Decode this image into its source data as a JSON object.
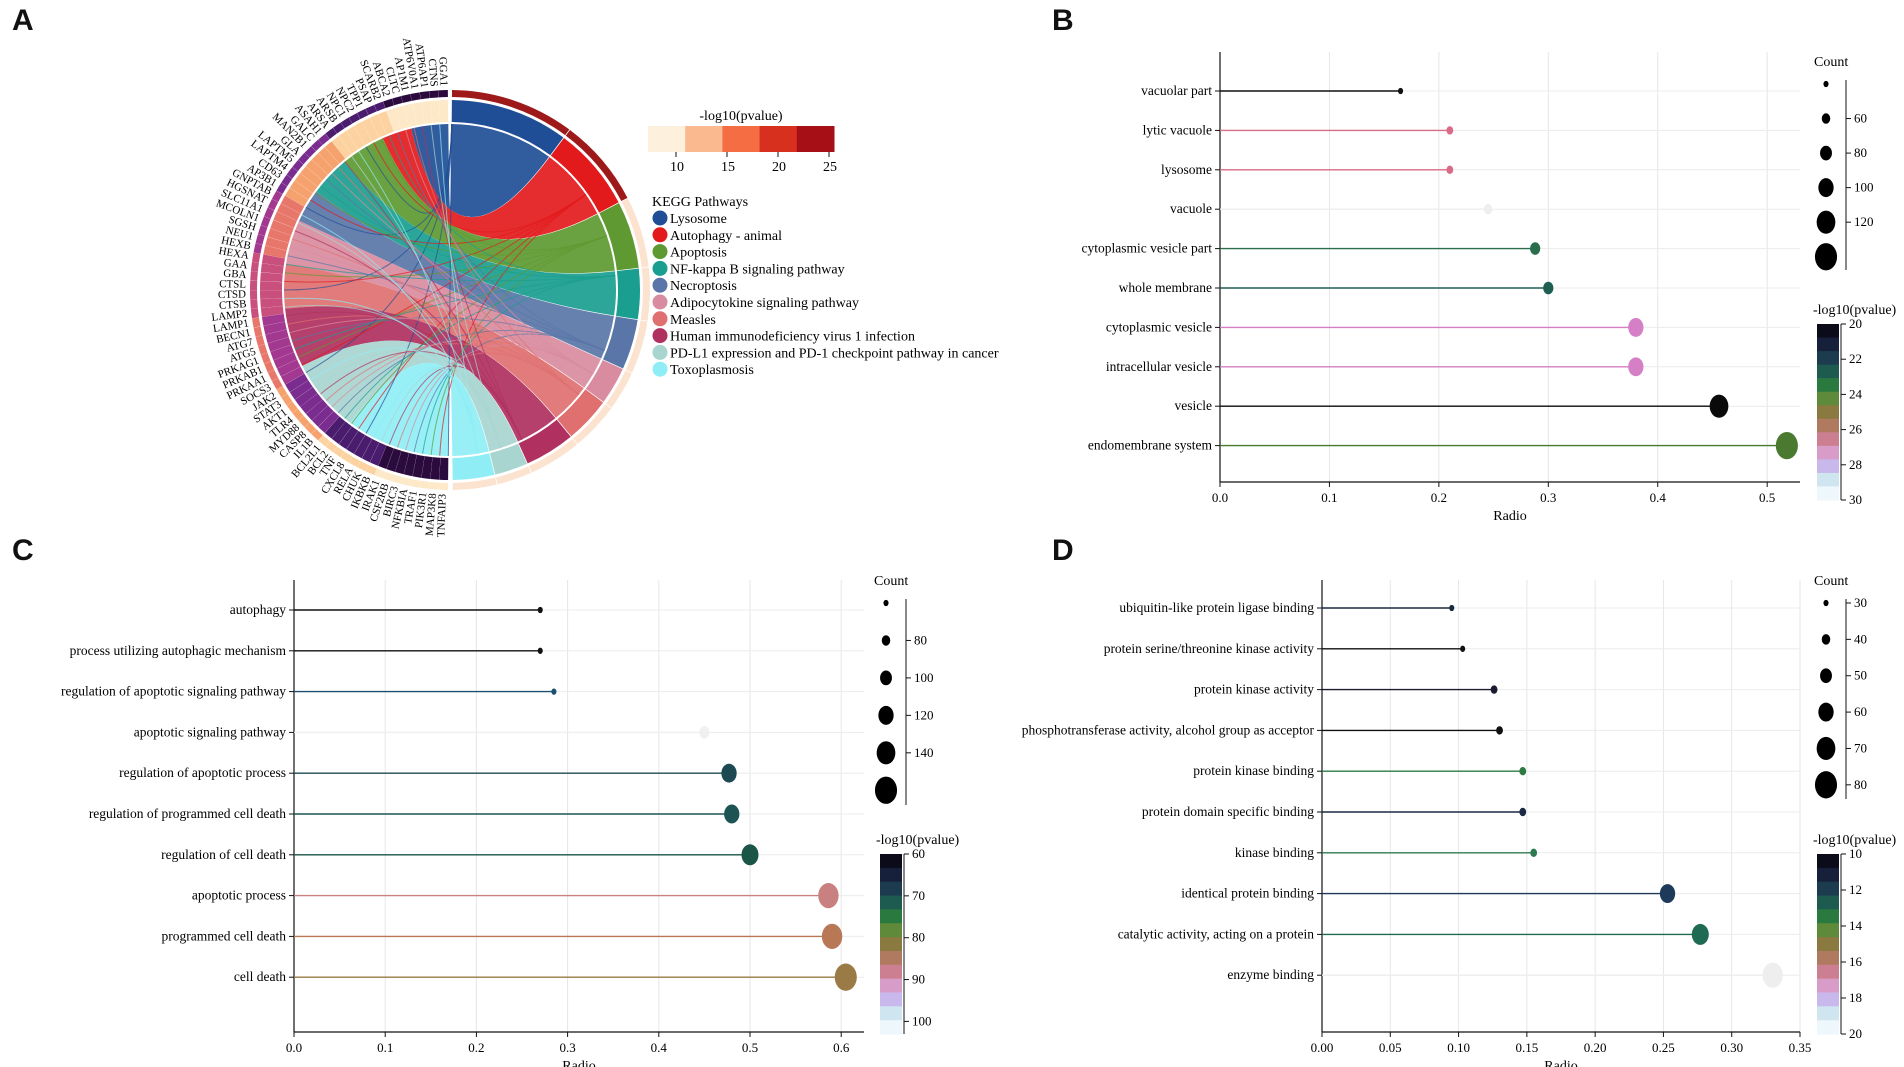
{
  "panels": {
    "a": "A",
    "b": "B",
    "c": "C",
    "d": "D"
  },
  "chart_data": [
    {
      "panel": "A",
      "type": "chord",
      "colorbar": {
        "title": "-log10(pvalue)",
        "ticks": [
          10,
          15,
          20,
          25
        ],
        "colors": [
          "#fdf0dc",
          "#fbb98f",
          "#f46d43",
          "#d7301f",
          "#a50f15"
        ]
      },
      "legend_title": "KEGG Pathways",
      "pathways": [
        {
          "name": "Lysosome",
          "color": "#1f4e96",
          "genes": 28
        },
        {
          "name": "Autophagy - animal",
          "color": "#e31a1c",
          "genes": 20
        },
        {
          "name": "Apoptosis",
          "color": "#5e9a31",
          "genes": 16
        },
        {
          "name": "NF-kappa B signaling pathway",
          "color": "#1a9e8f",
          "genes": 12
        },
        {
          "name": "Necroptosis",
          "color": "#5a76a8",
          "genes": 12
        },
        {
          "name": "Adipocytokine signaling pathway",
          "color": "#d98ca0",
          "genes": 9
        },
        {
          "name": "Measles",
          "color": "#e07070",
          "genes": 11
        },
        {
          "name": "Human immunodeficiency virus 1 infection",
          "color": "#b03060",
          "genes": 12
        },
        {
          "name": "PD-L1 expression and PD-1 checkpoint pathway in cancer",
          "color": "#a8d5d0",
          "genes": 8
        },
        {
          "name": "Toxoplasmosis",
          "color": "#8feef5",
          "genes": 10
        }
      ],
      "genes": [
        "TNFAIP3",
        "MAP3K8",
        "PIK3R1",
        "TRAF1",
        "NFKBIA",
        "BIRC3",
        "CSF2RB",
        "IRAK1",
        "IKBKB",
        "CHUK",
        "RELA",
        "CXCL8",
        "TNF",
        "BCL2",
        "BCL2L1",
        "IL1B",
        "CASP8",
        "MYD88",
        "TLR4",
        "AKT1",
        "STAT3",
        "JAK2",
        "SOCS3",
        "PRKAA1",
        "PRKAB1",
        "PRKAG1",
        "ATG5",
        "ATG7",
        "BECN1",
        "LAMP1",
        "LAMP2",
        "CTSB",
        "CTSD",
        "CTSL",
        "GBA",
        "GAA",
        "HEXA",
        "HEXB",
        "NEU1",
        "SGSH",
        "MCOLN1",
        "SLC11A1",
        "HGSNAT",
        "GNPTAB",
        "AP3B1",
        "CD63",
        "LAPTM4",
        "LAPTM5",
        "GLA",
        "MAN2B1",
        "GALC",
        "ASAH1",
        "ARSA",
        "ARSB",
        "NPC1",
        "NPC2",
        "TPP1",
        "PSAP",
        "SCARB2",
        "ABCA2",
        "CLTC",
        "AP1M1",
        "ATP6V0A1",
        "ATP6AP1",
        "CTNS",
        "GGA1"
      ]
    },
    {
      "panel": "B",
      "type": "lollipop",
      "xlabel": "Radio",
      "xlim": [
        0,
        0.53
      ],
      "xticks": [
        0.0,
        0.1,
        0.2,
        0.3,
        0.4,
        0.5
      ],
      "size_legend": {
        "title": "Count",
        "breaks": [
          "",
          "60",
          "80",
          "100",
          "120",
          ""
        ]
      },
      "color_legend": {
        "title": "-log10(pvalue)",
        "ticks": [
          "20",
          "22",
          "24",
          "26",
          "28",
          "30"
        ]
      },
      "items": [
        {
          "label": "vacuolar part",
          "value": 0.165,
          "color": "#111111",
          "size": 3
        },
        {
          "label": "lytic vacuole",
          "value": 0.21,
          "color": "#d96b86",
          "size": 4
        },
        {
          "label": "lysosome",
          "value": 0.21,
          "color": "#d96b86",
          "size": 4
        },
        {
          "label": "vacuole",
          "value": 0.245,
          "color": "#eeeeee",
          "size": 5
        },
        {
          "label": "cytoplasmic vesicle part",
          "value": 0.288,
          "color": "#2a6e4e",
          "size": 6
        },
        {
          "label": "whole membrane",
          "value": 0.3,
          "color": "#1f5e52",
          "size": 6
        },
        {
          "label": "cytoplasmic vesicle",
          "value": 0.38,
          "color": "#d47fc6",
          "size": 9
        },
        {
          "label": "intracellular vesicle",
          "value": 0.38,
          "color": "#d47fc6",
          "size": 9
        },
        {
          "label": "vesicle",
          "value": 0.456,
          "color": "#0a0a0a",
          "size": 11
        },
        {
          "label": "endomembrane system",
          "value": 0.518,
          "color": "#4a7a30",
          "size": 13
        }
      ]
    },
    {
      "panel": "C",
      "type": "lollipop",
      "xlabel": "Radio",
      "xlim": [
        0,
        0.625
      ],
      "xticks": [
        0.0,
        0.1,
        0.2,
        0.3,
        0.4,
        0.5,
        0.6
      ],
      "size_legend": {
        "title": "Count",
        "breaks": [
          "",
          "80",
          "100",
          "120",
          "140",
          ""
        ]
      },
      "color_legend": {
        "title": "-log10(pvalue)",
        "ticks": [
          "60",
          "70",
          "80",
          "90",
          "100"
        ]
      },
      "items": [
        {
          "label": "autophagy",
          "value": 0.27,
          "color": "#111111",
          "size": 3
        },
        {
          "label": "process utilizing autophagic mechanism",
          "value": 0.27,
          "color": "#111111",
          "size": 3
        },
        {
          "label": "regulation of apoptotic signaling pathway",
          "value": 0.285,
          "color": "#1d4f6e",
          "size": 3
        },
        {
          "label": "apoptotic signaling pathway",
          "value": 0.45,
          "color": "#f0f0f0",
          "size": 6
        },
        {
          "label": "regulation of apoptotic process",
          "value": 0.477,
          "color": "#1d4a52",
          "size": 9
        },
        {
          "label": "regulation of programmed cell death",
          "value": 0.48,
          "color": "#1e5354",
          "size": 9
        },
        {
          "label": "regulation of cell death",
          "value": 0.5,
          "color": "#1a5547",
          "size": 10
        },
        {
          "label": "apoptotic process",
          "value": 0.586,
          "color": "#c98080",
          "size": 12
        },
        {
          "label": "programmed cell death",
          "value": 0.59,
          "color": "#b87755",
          "size": 12
        },
        {
          "label": "cell death",
          "value": 0.605,
          "color": "#9a7a45",
          "size": 13
        }
      ]
    },
    {
      "panel": "D",
      "type": "lollipop",
      "xlabel": "Radio",
      "xlim": [
        0,
        0.35
      ],
      "xticks": [
        0.0,
        0.05,
        0.1,
        0.15,
        0.2,
        0.25,
        0.3,
        0.35
      ],
      "size_legend": {
        "title": "Count",
        "breaks": [
          "30",
          "40",
          "50",
          "60",
          "70",
          "80"
        ]
      },
      "color_legend": {
        "title": "-log10(pvalue)",
        "ticks": [
          "10",
          "12",
          "14",
          "16",
          "18",
          "20"
        ]
      },
      "items": [
        {
          "label": "ubiquitin-like protein ligase binding",
          "value": 0.095,
          "color": "#1a2a40",
          "size": 3
        },
        {
          "label": "protein serine/threonine kinase activity",
          "value": 0.103,
          "color": "#111111",
          "size": 3
        },
        {
          "label": "protein kinase activity",
          "value": 0.126,
          "color": "#1a1a30",
          "size": 4
        },
        {
          "label": "phosphotransferase activity, alcohol group as acceptor",
          "value": 0.13,
          "color": "#111111",
          "size": 4
        },
        {
          "label": "protein kinase binding",
          "value": 0.147,
          "color": "#2e7a45",
          "size": 4
        },
        {
          "label": "protein domain specific binding",
          "value": 0.147,
          "color": "#1a2a45",
          "size": 4
        },
        {
          "label": "kinase binding",
          "value": 0.155,
          "color": "#2e7a50",
          "size": 4
        },
        {
          "label": "identical protein binding",
          "value": 0.253,
          "color": "#1d3a5a",
          "size": 9
        },
        {
          "label": "catalytic activity, acting on a protein",
          "value": 0.277,
          "color": "#1e6a52",
          "size": 10
        },
        {
          "label": "enzyme binding",
          "value": 0.33,
          "color": "#eeeeee",
          "size": 12
        }
      ]
    }
  ]
}
